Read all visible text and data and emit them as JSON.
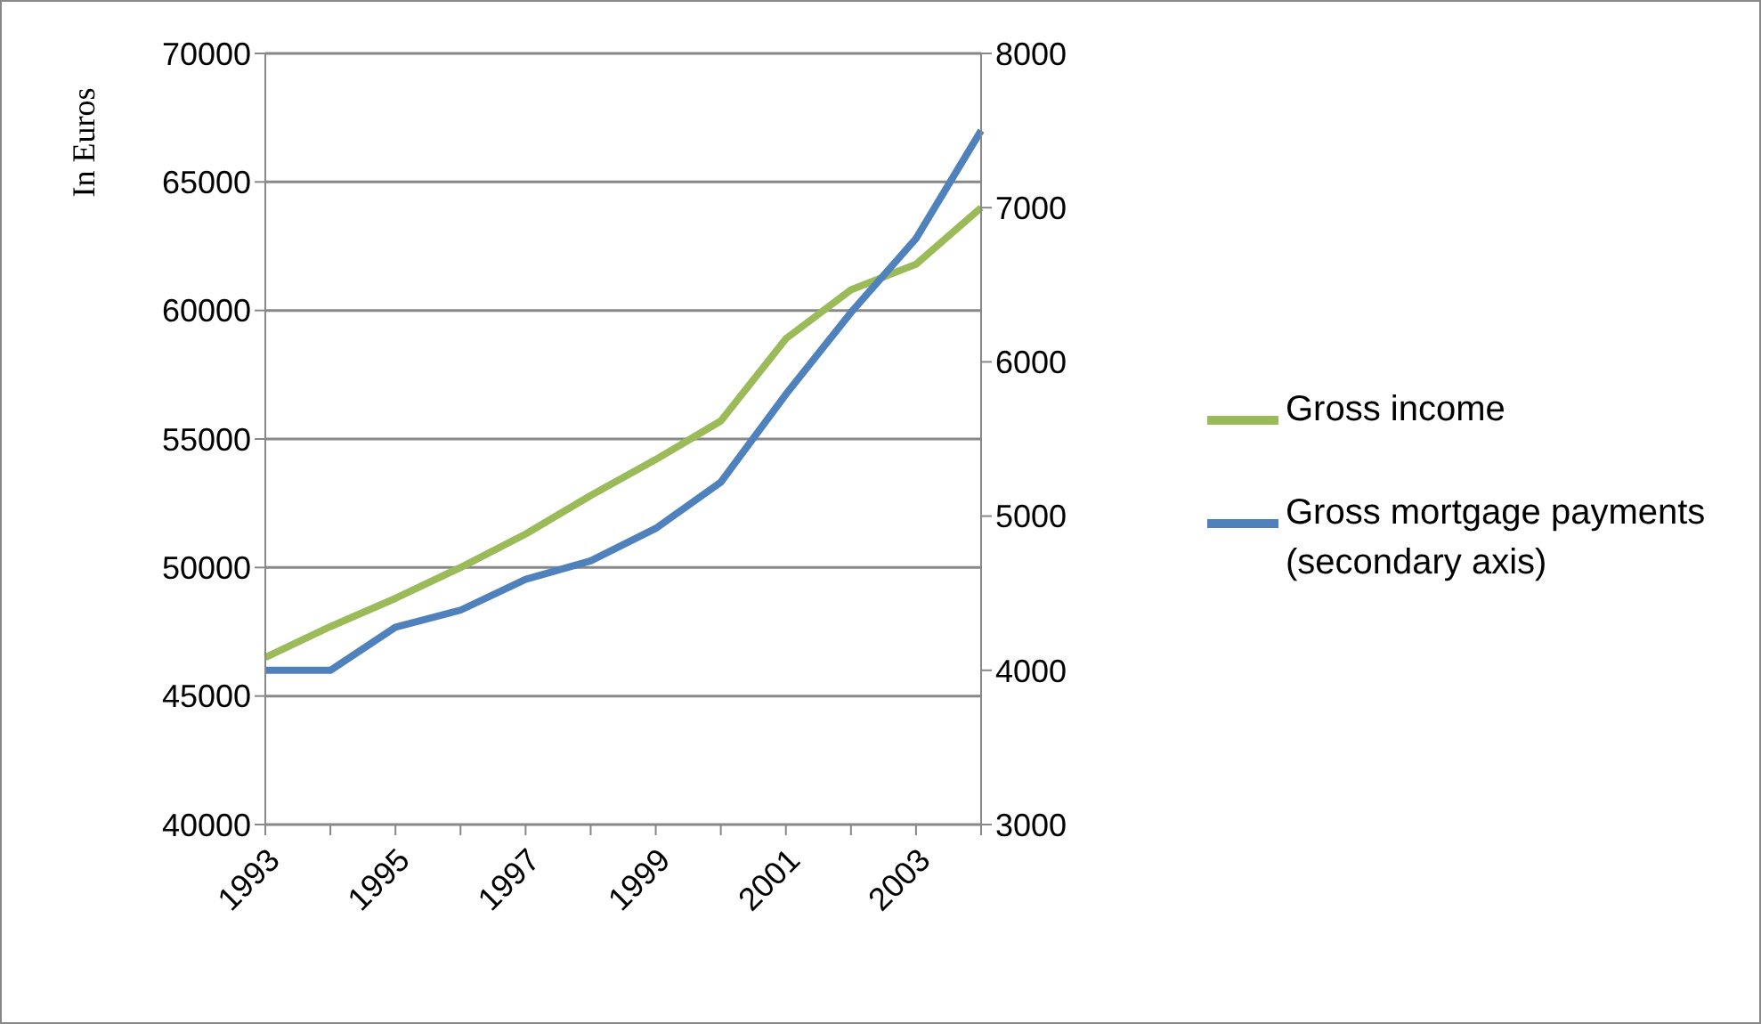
{
  "chart_data": {
    "type": "line",
    "ylabel": "In Euros",
    "categories": [
      "1993",
      null,
      "1995",
      null,
      "1997",
      null,
      "1999",
      null,
      "2001",
      null,
      "2003",
      null
    ],
    "series": [
      {
        "name": "Gross income",
        "color": "#9bbb59",
        "values": [
          46500,
          47700,
          48800,
          50000,
          51300,
          52800,
          54200,
          55700,
          58900,
          60800,
          61800,
          64000
        ]
      },
      {
        "name": "Gross mortgage payments (secondary axis)",
        "color": "#4f81bd",
        "axis": "y2",
        "values": [
          4000,
          4000,
          4280,
          4390,
          4590,
          4710,
          4920,
          5220,
          5790,
          6320,
          6800,
          7500
        ]
      }
    ],
    "ylim": [
      40000,
      70000
    ],
    "yticks": [
      40000,
      45000,
      50000,
      55000,
      60000,
      65000,
      70000
    ],
    "y2lim": [
      3000,
      8000
    ],
    "y2ticks": [
      3000,
      4000,
      5000,
      6000,
      7000,
      8000
    ],
    "grid": "y",
    "legend": "right",
    "marker": "none",
    "line_style": "solid"
  }
}
